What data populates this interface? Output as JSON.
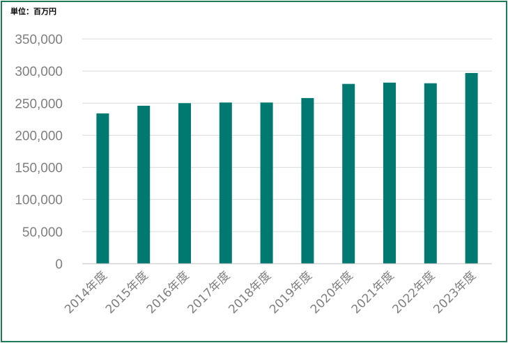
{
  "unit_label": "単位：百万円",
  "colors": {
    "frame": "#1e7a55",
    "bar": "#007a70",
    "grid": "#d9d9d9",
    "axis": "#bfbfbf",
    "tick_text": "#7f7f7f"
  },
  "chart_data": {
    "type": "bar",
    "categories": [
      "2014年度",
      "2015年度",
      "2016年度",
      "2017年度",
      "2018年度",
      "2019年度",
      "2020年度",
      "2021年度",
      "2022年度",
      "2023年度"
    ],
    "values": [
      234000,
      246000,
      250000,
      251000,
      251000,
      258000,
      280000,
      282000,
      281000,
      297000
    ],
    "ylim": [
      0,
      350000
    ],
    "yticks": [
      "0",
      "50,000",
      "100,000",
      "150,000",
      "200,000",
      "250,000",
      "300,000",
      "350,000"
    ],
    "grid": true,
    "legend": "none"
  }
}
